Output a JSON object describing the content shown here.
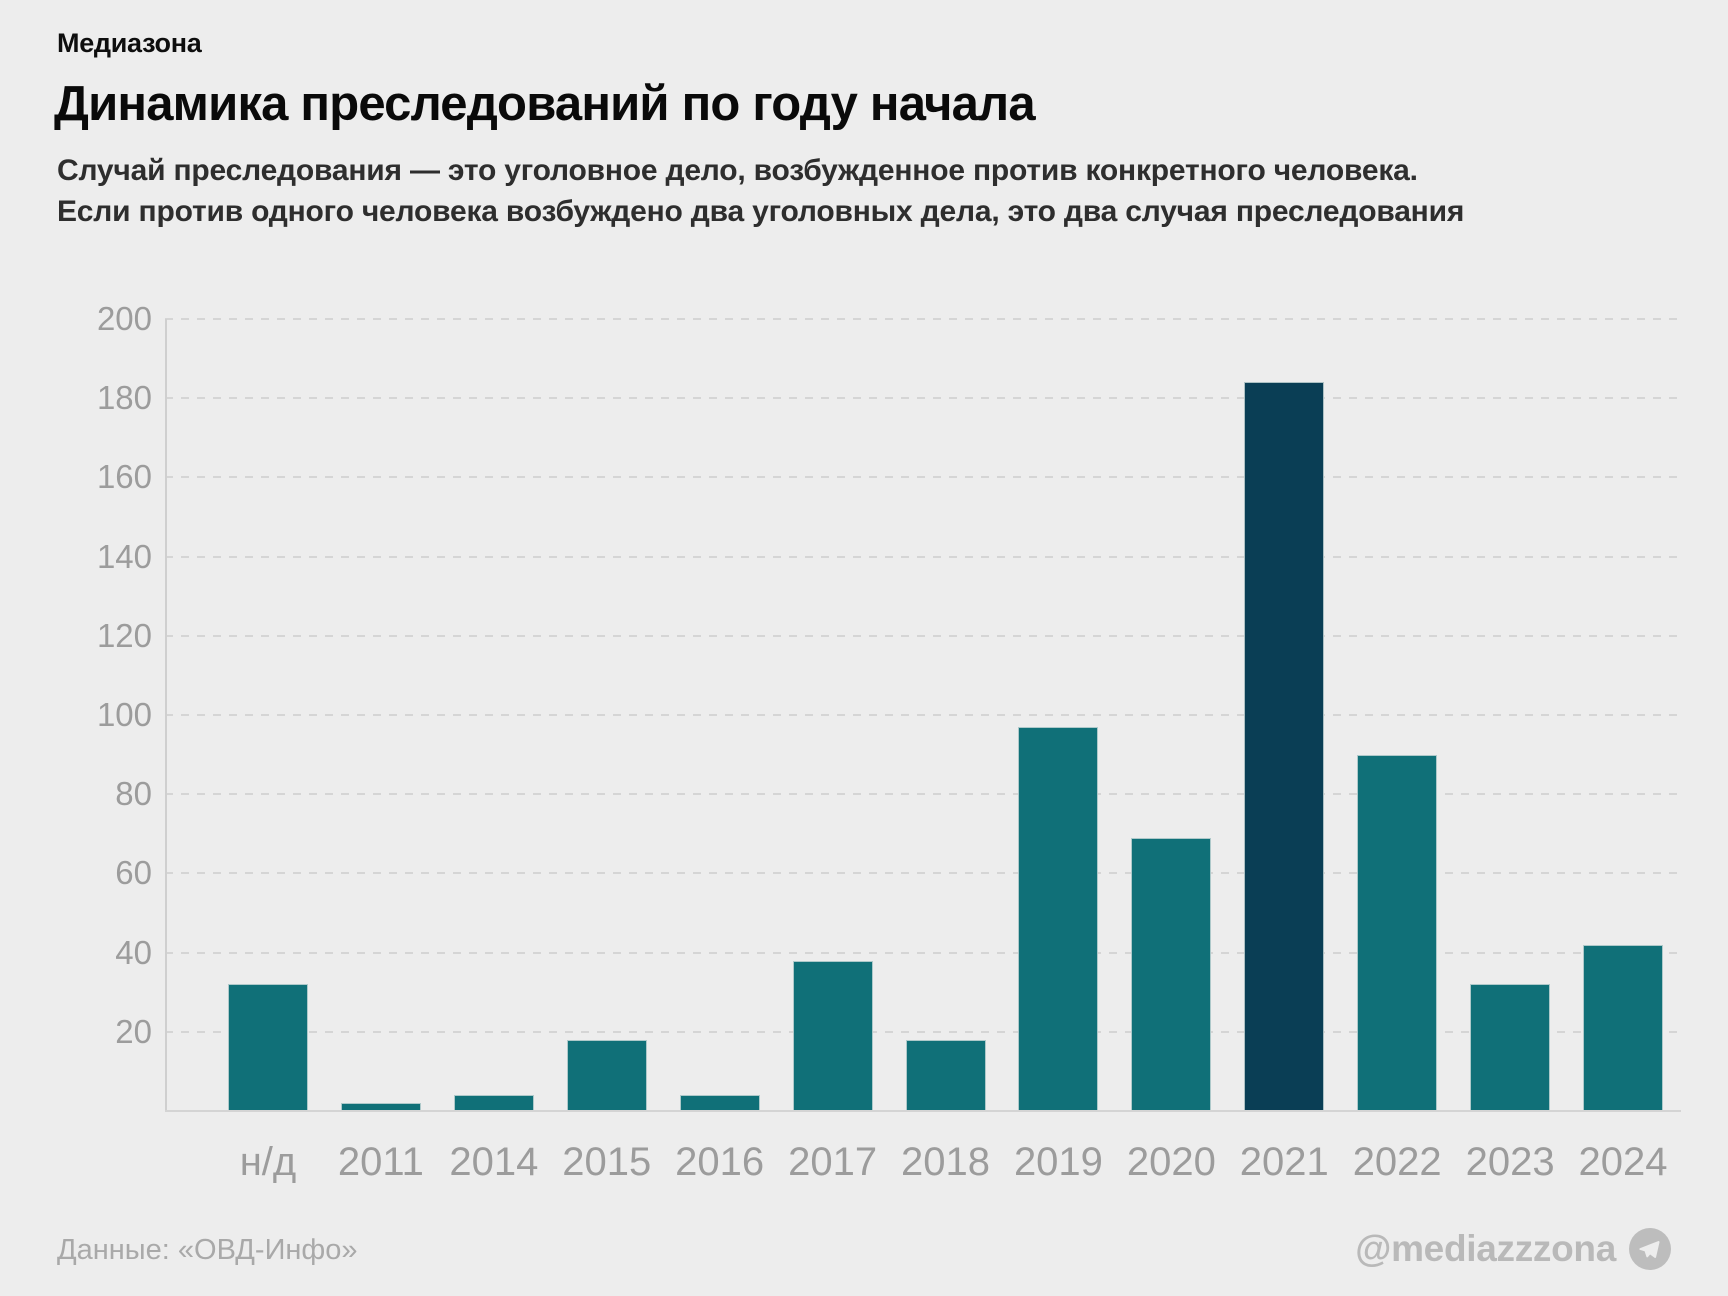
{
  "brand": "Медиазона",
  "title": "Динамика преследований по году начала",
  "subtitle_line1": "Случай преследования — это уголовное дело, возбужденное против конкретного человека.",
  "subtitle_line2": "Если против одного человека возбуждено два уголовных дела, это два случая преследования",
  "footer": {
    "source": "Данные: «ОВД-Инфо»",
    "handle": "@mediazzzona",
    "icon": "telegram-icon"
  },
  "colors": {
    "background": "#EDEDED",
    "bar": "#107078",
    "bar_highlight": "#0A3E55",
    "axis_text": "#9C9C9C",
    "grid": "#D5D5D5",
    "title_text": "#0A0A0A",
    "subtitle_text": "#2E2E2E",
    "footer_text": "#A9A9A9"
  },
  "chart_data": {
    "type": "bar",
    "categories": [
      "н/д",
      "2011",
      "2014",
      "2015",
      "2016",
      "2017",
      "2018",
      "2019",
      "2020",
      "2021",
      "2022",
      "2023",
      "2024"
    ],
    "values": [
      32,
      2,
      4,
      18,
      4,
      38,
      18,
      97,
      69,
      184,
      90,
      32,
      42
    ],
    "highlighted_category": "2021",
    "title": "Динамика преследований по году начала",
    "xlabel": "",
    "ylabel": "",
    "ylim": [
      0,
      200
    ],
    "yticks": [
      20,
      40,
      60,
      80,
      100,
      120,
      140,
      160,
      180,
      200
    ],
    "grid": "horizontal-dashed",
    "legend": "none"
  }
}
